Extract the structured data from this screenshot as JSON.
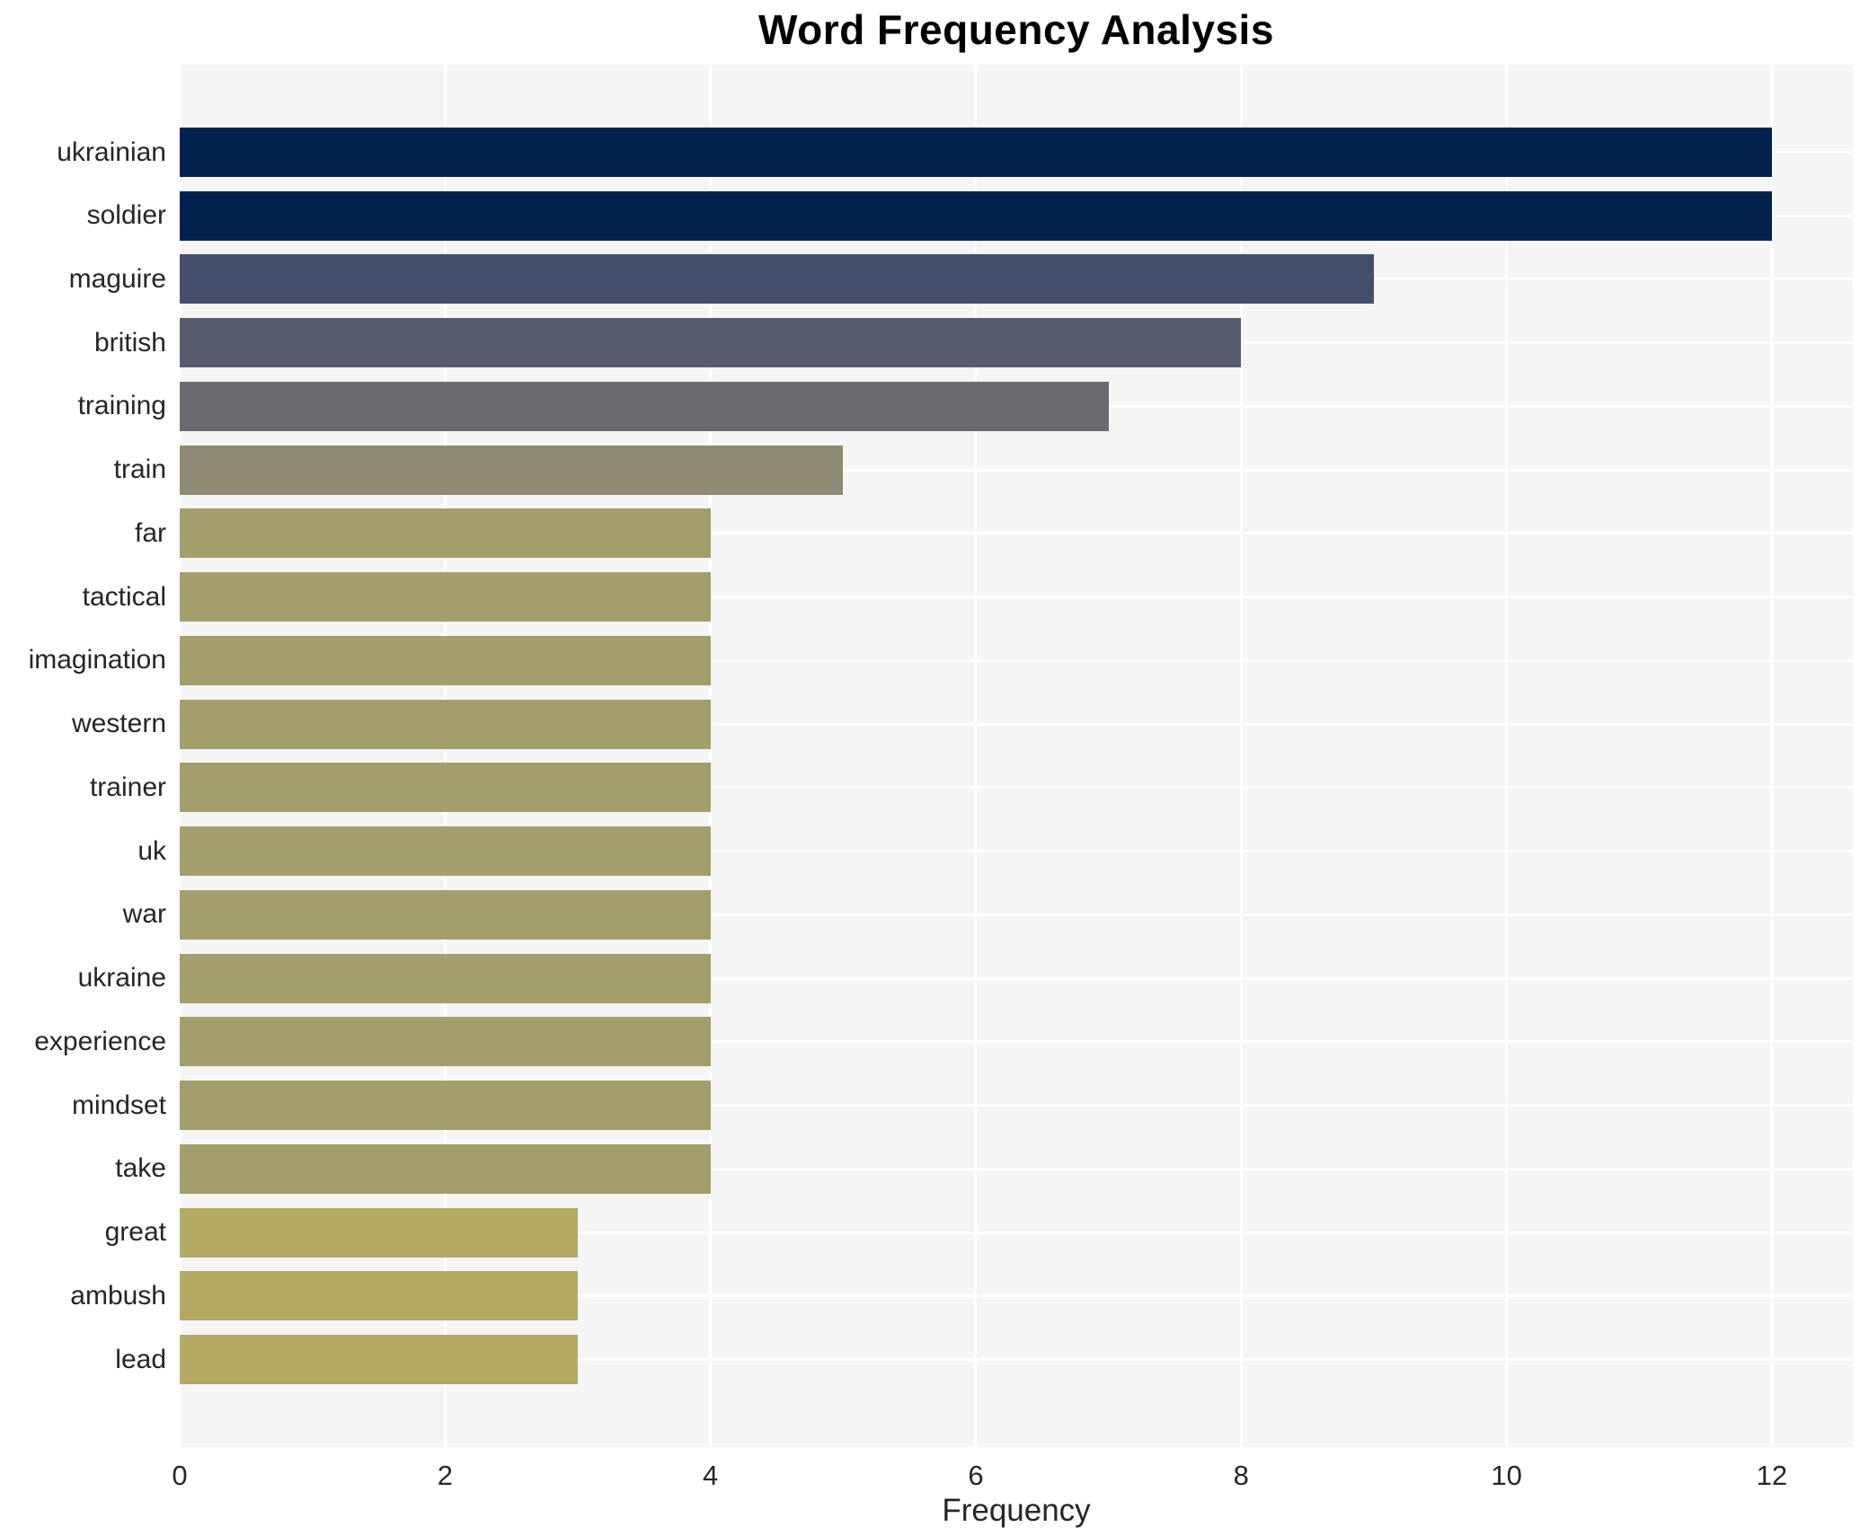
{
  "chart_data": {
    "type": "bar",
    "orientation": "horizontal",
    "title": "Word Frequency Analysis",
    "xlabel": "Frequency",
    "ylabel": "",
    "categories": [
      "ukrainian",
      "soldier",
      "maguire",
      "british",
      "training",
      "train",
      "far",
      "tactical",
      "imagination",
      "western",
      "trainer",
      "uk",
      "war",
      "ukraine",
      "experience",
      "mindset",
      "take",
      "great",
      "ambush",
      "lead"
    ],
    "values": [
      12,
      12,
      9,
      8,
      7,
      5,
      4,
      4,
      4,
      4,
      4,
      4,
      4,
      4,
      4,
      4,
      4,
      3,
      3,
      3
    ],
    "bar_colors": [
      "#02234e",
      "#02234e",
      "#454f6d",
      "#565b6d",
      "#6a6a71",
      "#8f8a74",
      "#a49d6c",
      "#a49d6c",
      "#a49d6c",
      "#a49d6c",
      "#a49d6c",
      "#a49d6c",
      "#a49d6c",
      "#a49d6c",
      "#a49d6c",
      "#a49d6c",
      "#a49d6c",
      "#b5aa64",
      "#b5aa64",
      "#b5aa64"
    ],
    "xticks": [
      0,
      2,
      4,
      6,
      8,
      10,
      12
    ],
    "xlim": [
      0,
      12.61
    ],
    "grid": true,
    "legend_position": "none",
    "plot_bg_color": "#f5f5f6",
    "grid_color": "#ffffff",
    "text_color": "#262626"
  }
}
